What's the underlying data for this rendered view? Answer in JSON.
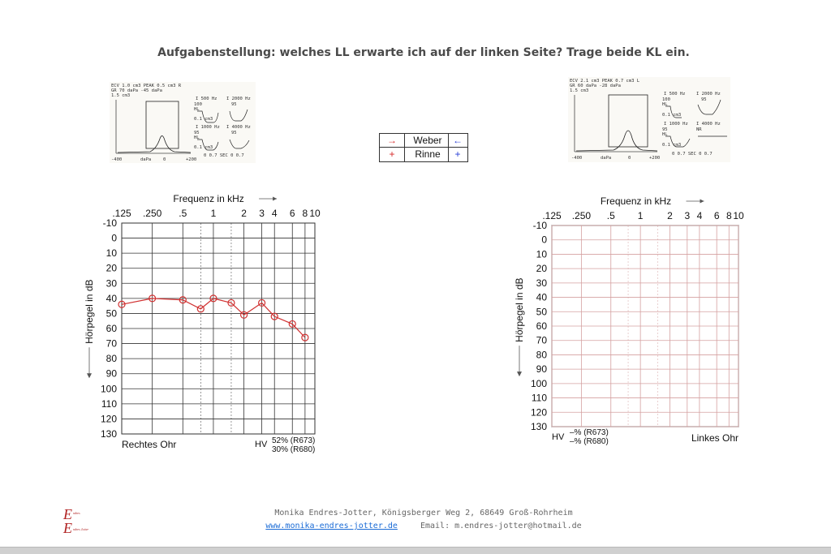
{
  "title": "Aufgabenstellung: welches LL erwarte ich auf der linken Seite? Trage beide KL ein.",
  "legend": {
    "weber_label": "Weber",
    "rinne_label": "Rinne",
    "weber_right_symbol": "→",
    "weber_left_symbol": "←",
    "rinne_right_symbol": "+",
    "rinne_left_symbol": "+",
    "colors": {
      "right": "#d62a2a",
      "left": "#2a3fd6"
    }
  },
  "tympanogram_left": {
    "header_line1": "ECV 1.0 cm3 PEAK 0.5 cm3 R",
    "header_line2": "GR  70 daPa     -45 daPa",
    "header_line3": "1.5 cm3",
    "axis_left": "-400",
    "axis_mid_label": "daPa",
    "axis_zero": "0",
    "axis_right": "+200",
    "reflex_freq_a": "I  500 Hz",
    "reflex_freq_b": "I 2000 Hz",
    "reflex_freq_c": "I 1000 Hz",
    "reflex_freq_d": "I 4000 Hz",
    "reflex_val_a": "100",
    "reflex_val_b": "95",
    "reflex_val_c": "95",
    "reflex_val_d": "95",
    "hl_label": "HL",
    "cm3_label": "0.1 cm3",
    "time_axis": "0   0.7 SEC 0  0.7"
  },
  "tympanogram_right": {
    "header_line1": "ECV 2.1 cm3 PEAK 0.7 cm3 L",
    "header_line2": "GR  60 daPa     -28 daPa",
    "header_line3": "1.5 cm3",
    "axis_left": "-400",
    "axis_mid_label": "daPa",
    "axis_zero": "0",
    "axis_right": "+200",
    "reflex_freq_a": "I  500 Hz",
    "reflex_freq_b": "I 2000 Hz",
    "reflex_freq_c": "I 1000 Hz",
    "reflex_freq_d": "I 4000 Hz",
    "reflex_val_a": "100",
    "reflex_val_b": "95",
    "reflex_val_c": "95",
    "reflex_val_d": "NR",
    "hl_label": "HL",
    "cm3_label": "0.1 cm3",
    "time_axis": "0   0.7 SEC 0  0.7"
  },
  "chart_data": [
    {
      "type": "line",
      "name": "audiogram-right",
      "xlabel": "Frequenz in kHz",
      "ylabel": "Hörpegel in dB",
      "x_tick_labels": [
        ".125",
        ".250",
        ".5",
        "1",
        "2",
        "3",
        "4",
        "6",
        "8",
        "10"
      ],
      "x_tick_khz": [
        0.125,
        0.25,
        0.5,
        1,
        2,
        3,
        4,
        6,
        8,
        10
      ],
      "y_tick_labels": [
        "-10",
        "0",
        "10",
        "20",
        "30",
        "40",
        "50",
        "60",
        "70",
        "80",
        "90",
        "100",
        "110",
        "120",
        "130"
      ],
      "ylim": [
        -10,
        130
      ],
      "y_inverted": true,
      "xscale": "log",
      "grid_color": "#333333",
      "series": [
        {
          "color": "#d03030",
          "marker": "circle",
          "x": [
            0.125,
            0.25,
            0.5,
            0.75,
            1,
            1.5,
            2,
            3,
            4,
            6,
            8
          ],
          "y": [
            44,
            40,
            41,
            47,
            40,
            43,
            51,
            43,
            52,
            57,
            66
          ]
        }
      ],
      "ear_label": "Rechtes Ohr",
      "hv_label": "HV",
      "hv_val1": "52% (R673)",
      "hv_val2": "30% (R680)"
    },
    {
      "type": "line",
      "name": "audiogram-left",
      "xlabel": "Frequenz in kHz",
      "ylabel": "Hörpegel in dB",
      "x_tick_labels": [
        ".125",
        ".250",
        ".5",
        "1",
        "2",
        "3",
        "4",
        "6",
        "8",
        "10"
      ],
      "x_tick_khz": [
        0.125,
        0.25,
        0.5,
        1,
        2,
        3,
        4,
        6,
        8,
        10
      ],
      "y_tick_labels": [
        "-10",
        "0",
        "10",
        "20",
        "30",
        "40",
        "50",
        "60",
        "70",
        "80",
        "90",
        "100",
        "110",
        "120",
        "130"
      ],
      "ylim": [
        -10,
        130
      ],
      "y_inverted": true,
      "xscale": "log",
      "grid_color": "#d4a0a0",
      "series": [],
      "ear_label": "Linkes Ohr",
      "hv_label": "HV",
      "hv_val1": "–% (R673)",
      "hv_val2": "–% (R680)"
    }
  ],
  "footer": {
    "line1": "Monika Endres-Jotter, Königsberger Weg 2, 68649 Groß-Rohrheim",
    "website": "www.monika-endres-jotter.de",
    "email": "Email: m.endres-jotter@hotmail.de"
  },
  "logo": {
    "letter_top": "E",
    "letter_bottom": "E",
    "text_top": "ndres",
    "text_bottom": "ndres Jotter",
    "color": "#b02020"
  }
}
